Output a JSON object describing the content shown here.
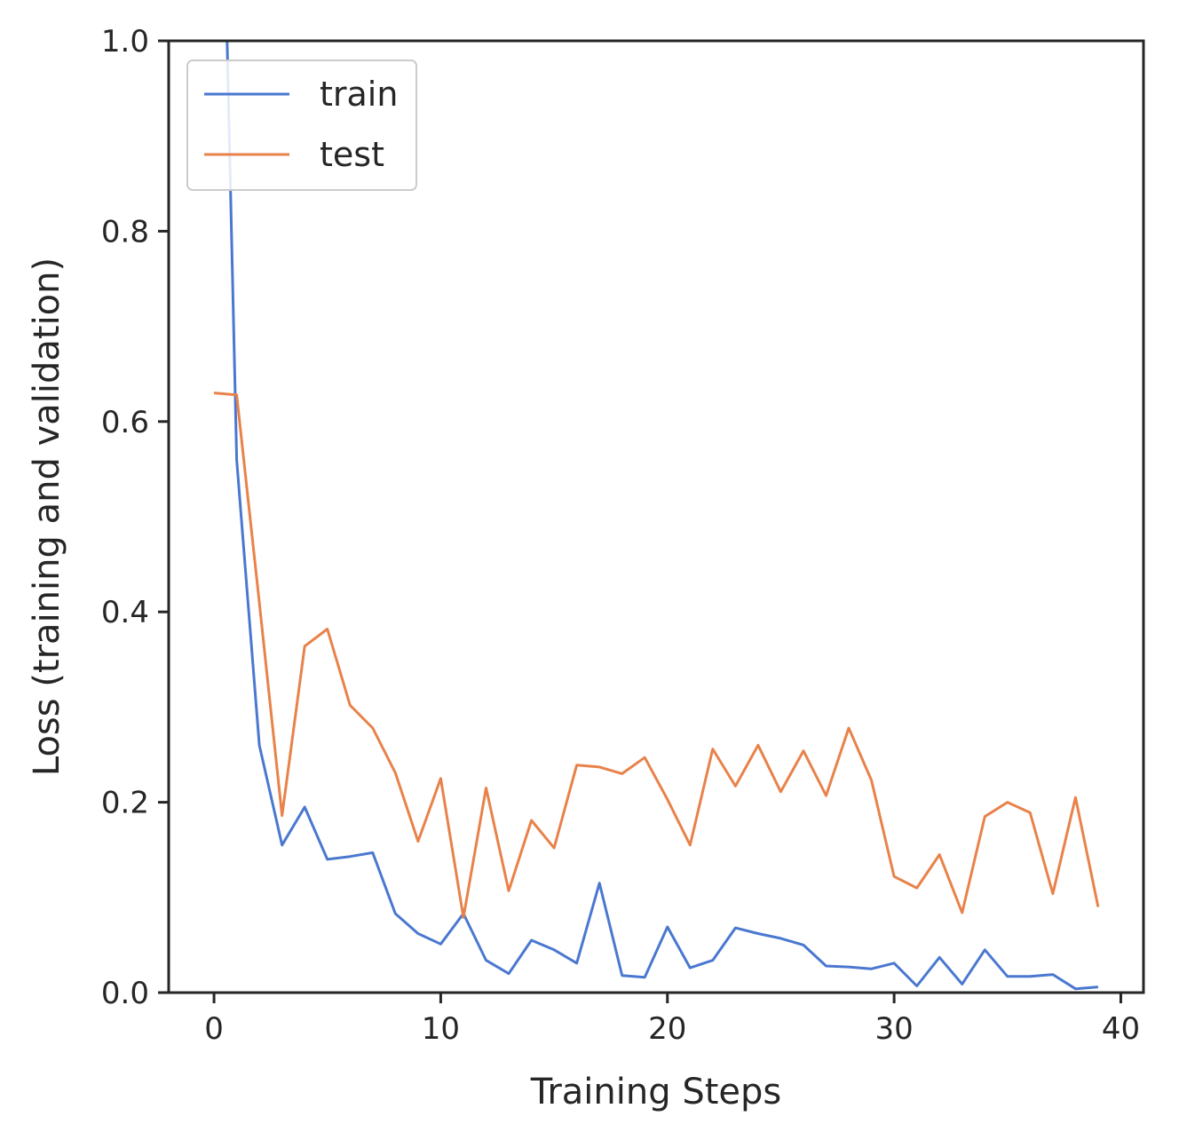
{
  "chart_data": {
    "type": "line",
    "title": "",
    "xlabel": "Training Steps",
    "ylabel": "Loss (training and validation)",
    "xlim": [
      -2,
      41
    ],
    "ylim": [
      0.0,
      1.0
    ],
    "xticks": [
      0,
      10,
      20,
      30,
      40
    ],
    "xtick_labels": [
      "0",
      "10",
      "20",
      "30",
      "40"
    ],
    "yticks": [
      0.0,
      0.2,
      0.4,
      0.6,
      0.8,
      1.0
    ],
    "ytick_labels": [
      "0.0",
      "0.2",
      "0.4",
      "0.6",
      "0.8",
      "1.0"
    ],
    "grid": false,
    "legend_position": "top-left",
    "x": [
      0,
      1,
      2,
      3,
      4,
      5,
      6,
      7,
      8,
      9,
      10,
      11,
      12,
      13,
      14,
      15,
      16,
      17,
      18,
      19,
      20,
      21,
      22,
      23,
      24,
      25,
      26,
      27,
      28,
      29,
      30,
      31,
      32,
      33,
      34,
      35,
      36,
      37,
      38,
      39
    ],
    "series": [
      {
        "name": "train",
        "color": "#4a78d0",
        "values": [
          1.6,
          0.56,
          0.26,
          0.155,
          0.195,
          0.14,
          0.143,
          0.147,
          0.083,
          0.062,
          0.051,
          0.083,
          0.034,
          0.02,
          0.055,
          0.045,
          0.031,
          0.115,
          0.018,
          0.016,
          0.069,
          0.026,
          0.034,
          0.068,
          0.062,
          0.057,
          0.05,
          0.028,
          0.027,
          0.025,
          0.031,
          0.007,
          0.037,
          0.009,
          0.045,
          0.017,
          0.017,
          0.019,
          0.004,
          0.006
        ]
      },
      {
        "name": "test",
        "color": "#e8824a",
        "values": [
          0.63,
          0.628,
          0.41,
          0.186,
          0.364,
          0.382,
          0.302,
          0.278,
          0.231,
          0.159,
          0.225,
          0.079,
          0.215,
          0.107,
          0.181,
          0.152,
          0.239,
          0.237,
          0.23,
          0.247,
          0.203,
          0.155,
          0.256,
          0.217,
          0.26,
          0.211,
          0.254,
          0.207,
          0.278,
          0.223,
          0.122,
          0.11,
          0.145,
          0.084,
          0.185,
          0.2,
          0.189,
          0.104,
          0.205,
          0.09
        ]
      }
    ]
  }
}
